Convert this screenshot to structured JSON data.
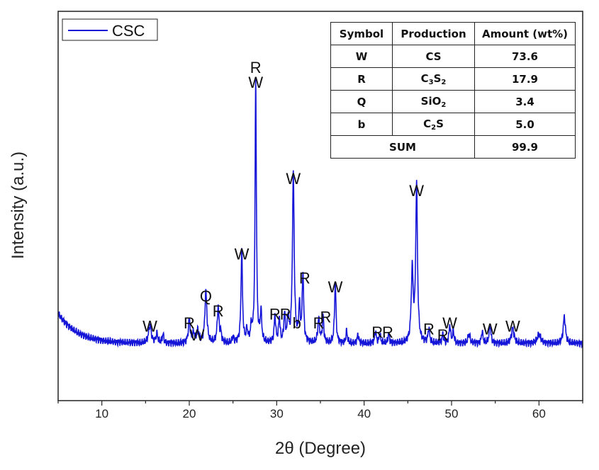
{
  "chart_data": {
    "type": "line",
    "title": "",
    "xlabel": "2θ (Degree)",
    "ylabel": "Intensity (a.u.)",
    "xlim": [
      5,
      65
    ],
    "ylim": [
      0,
      100
    ],
    "x_ticks": [
      "10",
      "20",
      "30",
      "40",
      "50",
      "60"
    ],
    "legend": {
      "position": "top-left",
      "entries": [
        "CSC"
      ]
    },
    "colors": {
      "series": "#1515d8",
      "axis": "#222222"
    },
    "series": [
      {
        "name": "CSC",
        "baseline": {
          "start": 17,
          "floor": 7,
          "decay": 2.2
        },
        "peaks": [
          [
            15.5,
            6,
            0.18
          ],
          [
            16.3,
            3,
            0.12
          ],
          [
            17.0,
            3,
            0.1
          ],
          [
            20.0,
            8,
            0.12
          ],
          [
            20.5,
            3,
            0.15
          ],
          [
            21.0,
            4,
            0.15
          ],
          [
            21.9,
            17,
            0.14
          ],
          [
            23.3,
            12,
            0.12
          ],
          [
            23.6,
            3,
            0.1
          ],
          [
            25.0,
            2,
            0.1
          ],
          [
            26.0,
            31,
            0.1
          ],
          [
            26.6,
            4,
            0.1
          ],
          [
            27.1,
            5,
            0.1
          ],
          [
            27.6,
            87,
            0.09
          ],
          [
            28.2,
            10,
            0.1
          ],
          [
            29.8,
            9,
            0.1
          ],
          [
            30.3,
            8,
            0.1
          ],
          [
            30.9,
            9,
            0.1
          ],
          [
            31.3,
            8,
            0.1
          ],
          [
            31.9,
            56,
            0.12
          ],
          [
            32.6,
            12,
            0.1
          ],
          [
            33.0,
            23,
            0.1
          ],
          [
            34.8,
            8,
            0.12
          ],
          [
            35.3,
            9,
            0.1
          ],
          [
            36.7,
            20,
            0.1
          ],
          [
            38.0,
            4,
            0.1
          ],
          [
            39.3,
            3,
            0.1
          ],
          [
            41.3,
            4,
            0.1
          ],
          [
            41.8,
            3,
            0.1
          ],
          [
            42.8,
            3,
            0.1
          ],
          [
            45.5,
            24,
            0.13
          ],
          [
            46.0,
            52,
            0.12
          ],
          [
            47.4,
            5,
            0.1
          ],
          [
            49.0,
            3,
            0.1
          ],
          [
            49.8,
            6,
            0.1
          ],
          [
            50.2,
            4,
            0.1
          ],
          [
            52.0,
            3,
            0.15
          ],
          [
            53.5,
            4,
            0.1
          ],
          [
            54.4,
            6,
            0.12
          ],
          [
            57.0,
            5,
            0.18
          ],
          [
            60.0,
            3,
            0.25
          ],
          [
            62.9,
            9,
            0.15
          ]
        ]
      }
    ],
    "annotations": [
      {
        "text": "W",
        "x": 15.5,
        "y": 11
      },
      {
        "text": "R",
        "x": 20.0,
        "y": 12
      },
      {
        "text": "W",
        "x": 20.9,
        "y": 8
      },
      {
        "text": "Q",
        "x": 21.9,
        "y": 21
      },
      {
        "text": "R",
        "x": 23.3,
        "y": 16
      },
      {
        "text": "W",
        "x": 26.0,
        "y": 35
      },
      {
        "text": "R",
        "x": 27.6,
        "y": 97
      },
      {
        "text": "W",
        "x": 27.6,
        "y": 92
      },
      {
        "text": "R",
        "x": 29.8,
        "y": 15
      },
      {
        "text": "R",
        "x": 31.0,
        "y": 15
      },
      {
        "text": "b",
        "x": 32.3,
        "y": 12
      },
      {
        "text": "W",
        "x": 31.9,
        "y": 60
      },
      {
        "text": "R",
        "x": 33.2,
        "y": 27
      },
      {
        "text": "R",
        "x": 34.8,
        "y": 12
      },
      {
        "text": "R",
        "x": 35.6,
        "y": 14
      },
      {
        "text": "W",
        "x": 36.7,
        "y": 24
      },
      {
        "text": "R",
        "x": 41.5,
        "y": 9
      },
      {
        "text": "R",
        "x": 42.7,
        "y": 9
      },
      {
        "text": "W",
        "x": 46.0,
        "y": 56
      },
      {
        "text": "R",
        "x": 47.4,
        "y": 10
      },
      {
        "text": "R",
        "x": 49.0,
        "y": 8
      },
      {
        "text": "W",
        "x": 49.8,
        "y": 12
      },
      {
        "text": "W",
        "x": 54.4,
        "y": 10
      },
      {
        "text": "W",
        "x": 57.0,
        "y": 11
      }
    ]
  },
  "table": {
    "headers": [
      "Symbol",
      "Production",
      "Amount  (wt%)"
    ],
    "rows": [
      {
        "symbol": "W",
        "production": "CS",
        "production_parts": [
          [
            "CS",
            ""
          ]
        ],
        "amount": "73.6"
      },
      {
        "symbol": "R",
        "production": "C3S2",
        "production_parts": [
          [
            "C",
            "3"
          ],
          [
            "S",
            "2"
          ]
        ],
        "amount": "17.9"
      },
      {
        "symbol": "Q",
        "production": "SiO2",
        "production_parts": [
          [
            "SiO",
            "2"
          ]
        ],
        "amount": "3.4"
      },
      {
        "symbol": "b",
        "production": "C2S",
        "production_parts": [
          [
            "C",
            "2"
          ],
          [
            "S",
            ""
          ]
        ],
        "amount": "5.0"
      }
    ],
    "sum_label": "SUM",
    "sum_value": "99.9"
  }
}
